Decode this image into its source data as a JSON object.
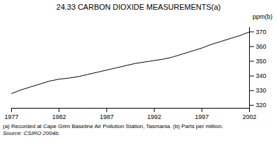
{
  "chart_data": {
    "type": "line",
    "title": "24.33   CARBON DIOXIDE MEASUREMENTS(a)",
    "ylabel": "ppm(b)",
    "annotations": [
      "(a) Recorded at Cape Grim Baseline Air Pollution Station, Tasmania.  (b) Parts per million.",
      "Source: CSIRO 2004b."
    ],
    "x": [
      1977,
      1978,
      1979,
      1980,
      1981,
      1982,
      1983,
      1984,
      1985,
      1986,
      1987,
      1988,
      1989,
      1990,
      1991,
      1992,
      1993,
      1994,
      1995,
      1996,
      1997,
      1998,
      1999,
      2000,
      2001,
      2002
    ],
    "values": [
      328.0,
      330.5,
      332.5,
      334.5,
      336.5,
      337.8,
      338.5,
      339.5,
      341.0,
      342.5,
      344.0,
      345.5,
      347.0,
      348.5,
      349.5,
      350.5,
      351.5,
      353.0,
      355.0,
      357.0,
      359.0,
      361.5,
      363.5,
      365.5,
      367.5,
      370.0
    ],
    "color": "#000000",
    "xlim": [
      1977,
      2002
    ],
    "xticks": [
      1977,
      1982,
      1987,
      1992,
      1997,
      2002
    ],
    "ylim": [
      318,
      373
    ],
    "yticks": [
      320,
      330,
      340,
      350,
      360,
      370
    ],
    "grid": false
  }
}
